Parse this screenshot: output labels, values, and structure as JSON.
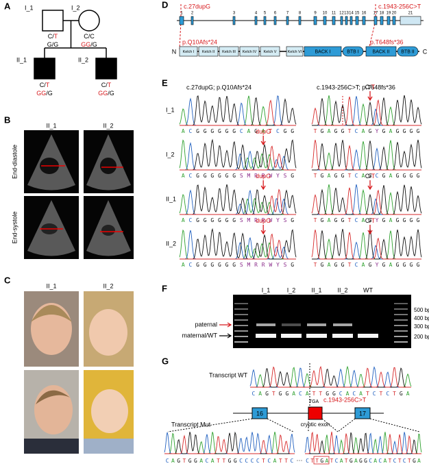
{
  "pedigree": {
    "label": "A",
    "members": [
      {
        "id": "I_1",
        "genotypes": [
          [
            {
              "text": "C/",
              "color": "#000000"
            },
            {
              "text": "T",
              "color": "#d7191c"
            }
          ],
          [
            {
              "text": "G/G",
              "color": "#000000"
            }
          ]
        ]
      },
      {
        "id": "I_2",
        "genotypes": [
          [
            {
              "text": "C/C",
              "color": "#000000"
            }
          ],
          [
            {
              "text": "GG",
              "color": "#d7191c"
            },
            {
              "text": "/G",
              "color": "#000000"
            }
          ]
        ]
      },
      {
        "id": "II_1",
        "genotypes": [
          [
            {
              "text": "C/",
              "color": "#000000"
            },
            {
              "text": "T",
              "color": "#d7191c"
            }
          ],
          [
            {
              "text": "GG",
              "color": "#d7191c"
            },
            {
              "text": "/G",
              "color": "#000000"
            }
          ]
        ]
      },
      {
        "id": "II_2",
        "genotypes": [
          [
            {
              "text": "C/",
              "color": "#000000"
            },
            {
              "text": "T",
              "color": "#d7191c"
            }
          ],
          [
            {
              "text": "GG",
              "color": "#d7191c"
            },
            {
              "text": "/G",
              "color": "#000000"
            }
          ]
        ]
      }
    ]
  },
  "echo": {
    "label": "B",
    "columns": [
      "II_1",
      "II_2"
    ],
    "rows": [
      "End-diastole",
      "End-systole"
    ]
  },
  "photos": {
    "label": "C",
    "columns": [
      "II_1",
      "II_2"
    ]
  },
  "gene": {
    "label": "D",
    "variant_cdna": [
      "c.27dupG",
      "c.1943-256C>T"
    ],
    "variant_protein": [
      "p.Q10Afs*24",
      "p.T648fs*36"
    ],
    "exons": [
      "1",
      "2",
      "3",
      "4",
      "5",
      "6",
      "7",
      "8",
      "9",
      "10",
      "11",
      "12",
      "13",
      "14",
      "15",
      "16",
      "17",
      "18",
      "19",
      "20",
      "21"
    ],
    "domains": [
      "Kelch I",
      "Kelch II",
      "Kelch III",
      "Kelch IV",
      "Kelch V",
      "Kelch VI",
      "BACK I",
      "BTB I",
      "BACK II",
      "BTB II"
    ],
    "n_term": "N",
    "c_term": "C"
  },
  "sanger": {
    "label": "E",
    "headings": [
      "c.27dupG; p.Q10Afs*24",
      "c.1943-256C>T; p.T648fs*36"
    ],
    "rows": [
      {
        "id": "I_1",
        "left": {
          "seq": "ACGGGGGGCAGATCGG"
        },
        "right": {
          "seq": "TGAGGTCAGYGAGGGG",
          "note": [
            {
              "text": "C/",
              "color": "#000000"
            },
            {
              "text": "T",
              "color": "#d7191c"
            }
          ]
        }
      },
      {
        "id": "I_2",
        "left": {
          "seq": "ACGGGGGGSMRRWYSG",
          "note": [
            {
              "text": "dupG",
              "color": "#d7191c"
            }
          ]
        },
        "right": {
          "seq": "TGAGGTCAGCGAGGGG"
        }
      },
      {
        "id": "II_1",
        "left": {
          "seq": "ACGGGGGGSMRRWYSG",
          "note": [
            {
              "text": "dupG",
              "color": "#d7191c"
            }
          ]
        },
        "right": {
          "seq": "TGAGGTCAGYGAGGGG",
          "note": [
            {
              "text": "C/",
              "color": "#000000"
            },
            {
              "text": "T",
              "color": "#d7191c"
            }
          ]
        }
      },
      {
        "id": "II_2",
        "left": {
          "seq": "ACGGGGGGSMRRWYSG",
          "note": [
            {
              "text": "dupG",
              "color": "#d7191c"
            }
          ]
        },
        "right": {
          "seq": "TGAGGTCAGYGAGGGG",
          "note": [
            {
              "text": "C/",
              "color": "#000000"
            },
            {
              "text": "T",
              "color": "#d7191c"
            }
          ]
        }
      }
    ]
  },
  "gel": {
    "label": "F",
    "lanes": [
      "I_1",
      "I_2",
      "II_1",
      "II_2",
      "WT"
    ],
    "sizes": [
      "500 bp",
      "400 bp",
      "300 bp",
      "200 bp"
    ],
    "arrows": [
      {
        "text": "paternal",
        "color": "#d7191c"
      },
      {
        "text": "maternal/WT",
        "color": "#000000"
      }
    ]
  },
  "transcript": {
    "label": "G",
    "wt_label": "Transcript WT",
    "wt_seq": "CAGTGGACATTGGCACATCTCTGA",
    "mut_label": "Transcript Mut",
    "mut_seq_left": "CAGTGGACATTGGCCCCTCATTC",
    "ellipsis": "···",
    "mut_seq_right": "CTTGATCATGAGGCACATCTCTGA",
    "exons": [
      "16",
      "17"
    ],
    "codon": "TGA",
    "variant": "c.1943-256C>T",
    "cryptic": "cryptic exon"
  }
}
